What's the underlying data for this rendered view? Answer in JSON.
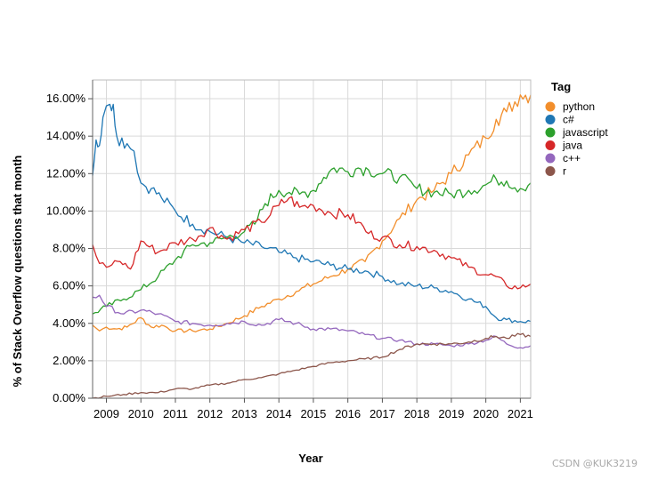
{
  "watermark": "CSDN @KUK3219",
  "chart_data": {
    "type": "line",
    "xlabel": "Year",
    "ylabel": "% of Stack Overflow questions that month",
    "xlim": [
      2008.6,
      2021.3
    ],
    "ylim": [
      0,
      17
    ],
    "x_ticks": [
      2009,
      2010,
      2011,
      2012,
      2013,
      2014,
      2015,
      2016,
      2017,
      2018,
      2019,
      2020,
      2021
    ],
    "y_ticks": [
      0,
      2,
      4,
      6,
      8,
      10,
      12,
      14,
      16
    ],
    "y_tick_labels": [
      "0.00%",
      "2.00%",
      "4.00%",
      "6.00%",
      "8.00%",
      "10.00%",
      "12.00%",
      "14.00%",
      "16.00%"
    ],
    "grid": true,
    "legend": {
      "title": "Tag",
      "position": "right"
    },
    "series": [
      {
        "name": "python",
        "color": "#f28e2b",
        "points": [
          [
            2008.6,
            3.9
          ],
          [
            2008.8,
            3.6
          ],
          [
            2009,
            3.8
          ],
          [
            2009.3,
            3.7
          ],
          [
            2009.6,
            3.8
          ],
          [
            2010,
            4.3
          ],
          [
            2010.3,
            3.8
          ],
          [
            2010.6,
            3.9
          ],
          [
            2011,
            3.6
          ],
          [
            2011.5,
            3.6
          ],
          [
            2012,
            3.7
          ],
          [
            2012.5,
            4.0
          ],
          [
            2013,
            4.4
          ],
          [
            2013.5,
            4.9
          ],
          [
            2014,
            5.3
          ],
          [
            2014.5,
            5.7
          ],
          [
            2015,
            6.1
          ],
          [
            2015.5,
            6.5
          ],
          [
            2016,
            6.9
          ],
          [
            2016.5,
            7.3
          ],
          [
            2017,
            8.4
          ],
          [
            2017.5,
            9.6
          ],
          [
            2018,
            10.6
          ],
          [
            2018.5,
            11.1
          ],
          [
            2019,
            12.0
          ],
          [
            2019.5,
            13.0
          ],
          [
            2020,
            13.9
          ],
          [
            2020.3,
            14.9
          ],
          [
            2020.6,
            15.3
          ],
          [
            2021,
            16.2
          ],
          [
            2021.3,
            16.2
          ]
        ]
      },
      {
        "name": "c#",
        "color": "#1f77b4",
        "points": [
          [
            2008.6,
            11.9
          ],
          [
            2008.7,
            13.8
          ],
          [
            2008.8,
            13.5
          ],
          [
            2008.9,
            15.0
          ],
          [
            2009.1,
            15.7
          ],
          [
            2009.2,
            15.7
          ],
          [
            2009.3,
            14.0
          ],
          [
            2009.6,
            13.6
          ],
          [
            2009.8,
            13.2
          ],
          [
            2010,
            11.5
          ],
          [
            2010.3,
            11.2
          ],
          [
            2010.6,
            10.7
          ],
          [
            2011,
            10.0
          ],
          [
            2011.5,
            9.3
          ],
          [
            2012,
            8.9
          ],
          [
            2012.5,
            8.6
          ],
          [
            2013,
            8.3
          ],
          [
            2013.5,
            8.1
          ],
          [
            2014,
            7.8
          ],
          [
            2014.5,
            7.5
          ],
          [
            2015,
            7.3
          ],
          [
            2015.5,
            7.1
          ],
          [
            2016,
            6.9
          ],
          [
            2016.5,
            6.8
          ],
          [
            2017,
            6.5
          ],
          [
            2017.5,
            6.1
          ],
          [
            2018,
            6.0
          ],
          [
            2018.5,
            5.9
          ],
          [
            2019,
            5.7
          ],
          [
            2019.5,
            5.3
          ],
          [
            2020,
            4.9
          ],
          [
            2020.3,
            4.3
          ],
          [
            2020.6,
            4.2
          ],
          [
            2021,
            4.1
          ],
          [
            2021.3,
            4.1
          ]
        ]
      },
      {
        "name": "javascript",
        "color": "#2ca02c",
        "points": [
          [
            2008.6,
            4.5
          ],
          [
            2009,
            4.9
          ],
          [
            2009.5,
            5.3
          ],
          [
            2010,
            5.8
          ],
          [
            2010.5,
            6.5
          ],
          [
            2011,
            7.4
          ],
          [
            2011.5,
            8.2
          ],
          [
            2012,
            8.3
          ],
          [
            2012.5,
            8.6
          ],
          [
            2013,
            8.9
          ],
          [
            2013.3,
            9.3
          ],
          [
            2013.6,
            10.4
          ],
          [
            2014,
            11.1
          ],
          [
            2014.3,
            11.0
          ],
          [
            2014.6,
            10.9
          ],
          [
            2015,
            11.1
          ],
          [
            2015.3,
            11.8
          ],
          [
            2015.6,
            12.3
          ],
          [
            2016,
            12.1
          ],
          [
            2016.3,
            12.3
          ],
          [
            2016.6,
            12.2
          ],
          [
            2017,
            12.0
          ],
          [
            2017.5,
            11.8
          ],
          [
            2018,
            11.2
          ],
          [
            2018.5,
            11.0
          ],
          [
            2019,
            10.9
          ],
          [
            2019.5,
            11.1
          ],
          [
            2020,
            11.4
          ],
          [
            2020.3,
            11.7
          ],
          [
            2020.6,
            11.6
          ],
          [
            2021,
            11.2
          ],
          [
            2021.3,
            11.5
          ]
        ]
      },
      {
        "name": "java",
        "color": "#d62728",
        "points": [
          [
            2008.6,
            8.2
          ],
          [
            2008.8,
            7.2
          ],
          [
            2009,
            7.0
          ],
          [
            2009.4,
            7.3
          ],
          [
            2009.7,
            6.9
          ],
          [
            2010,
            8.4
          ],
          [
            2010.5,
            7.8
          ],
          [
            2011,
            8.3
          ],
          [
            2011.5,
            8.5
          ],
          [
            2012,
            9.1
          ],
          [
            2012.5,
            8.5
          ],
          [
            2013,
            9.0
          ],
          [
            2013.5,
            9.4
          ],
          [
            2014,
            10.3
          ],
          [
            2014.3,
            10.7
          ],
          [
            2014.6,
            10.2
          ],
          [
            2015,
            10.3
          ],
          [
            2015.5,
            9.9
          ],
          [
            2016,
            9.8
          ],
          [
            2016.3,
            9.4
          ],
          [
            2016.6,
            8.8
          ],
          [
            2017,
            8.6
          ],
          [
            2017.5,
            8.2
          ],
          [
            2018,
            8.1
          ],
          [
            2018.5,
            7.9
          ],
          [
            2019,
            7.5
          ],
          [
            2019.5,
            7.0
          ],
          [
            2020,
            6.6
          ],
          [
            2020.3,
            6.5
          ],
          [
            2020.6,
            6.0
          ],
          [
            2021,
            5.9
          ],
          [
            2021.3,
            6.1
          ]
        ]
      },
      {
        "name": "c++",
        "color": "#9467bd",
        "points": [
          [
            2008.6,
            5.4
          ],
          [
            2008.8,
            5.5
          ],
          [
            2009,
            4.9
          ],
          [
            2009.5,
            4.5
          ],
          [
            2010,
            4.7
          ],
          [
            2010.5,
            4.5
          ],
          [
            2011,
            4.1
          ],
          [
            2011.5,
            4.0
          ],
          [
            2012,
            3.9
          ],
          [
            2012.5,
            4.0
          ],
          [
            2013,
            4.1
          ],
          [
            2013.5,
            3.9
          ],
          [
            2014,
            4.2
          ],
          [
            2014.5,
            4.0
          ],
          [
            2015,
            3.7
          ],
          [
            2015.5,
            3.7
          ],
          [
            2016,
            3.6
          ],
          [
            2016.5,
            3.4
          ],
          [
            2017,
            3.2
          ],
          [
            2017.5,
            3.1
          ],
          [
            2018,
            2.9
          ],
          [
            2018.5,
            2.9
          ],
          [
            2019,
            2.8
          ],
          [
            2019.5,
            2.9
          ],
          [
            2020,
            3.1
          ],
          [
            2020.3,
            3.3
          ],
          [
            2020.6,
            2.9
          ],
          [
            2021,
            2.7
          ],
          [
            2021.3,
            2.8
          ]
        ]
      },
      {
        "name": "r",
        "color": "#8c564b",
        "points": [
          [
            2008.6,
            0.0
          ],
          [
            2009,
            0.1
          ],
          [
            2009.5,
            0.2
          ],
          [
            2010,
            0.3
          ],
          [
            2010.5,
            0.3
          ],
          [
            2011,
            0.5
          ],
          [
            2011.5,
            0.5
          ],
          [
            2012,
            0.7
          ],
          [
            2012.5,
            0.8
          ],
          [
            2013,
            1.0
          ],
          [
            2013.5,
            1.1
          ],
          [
            2014,
            1.3
          ],
          [
            2014.5,
            1.5
          ],
          [
            2015,
            1.7
          ],
          [
            2015.5,
            1.9
          ],
          [
            2016,
            2.0
          ],
          [
            2016.5,
            2.1
          ],
          [
            2017,
            2.2
          ],
          [
            2017.5,
            2.6
          ],
          [
            2018,
            2.9
          ],
          [
            2018.5,
            2.9
          ],
          [
            2019,
            2.9
          ],
          [
            2019.5,
            3.0
          ],
          [
            2020,
            3.2
          ],
          [
            2020.3,
            3.3
          ],
          [
            2020.6,
            3.2
          ],
          [
            2021,
            3.4
          ],
          [
            2021.3,
            3.3
          ]
        ]
      }
    ]
  }
}
